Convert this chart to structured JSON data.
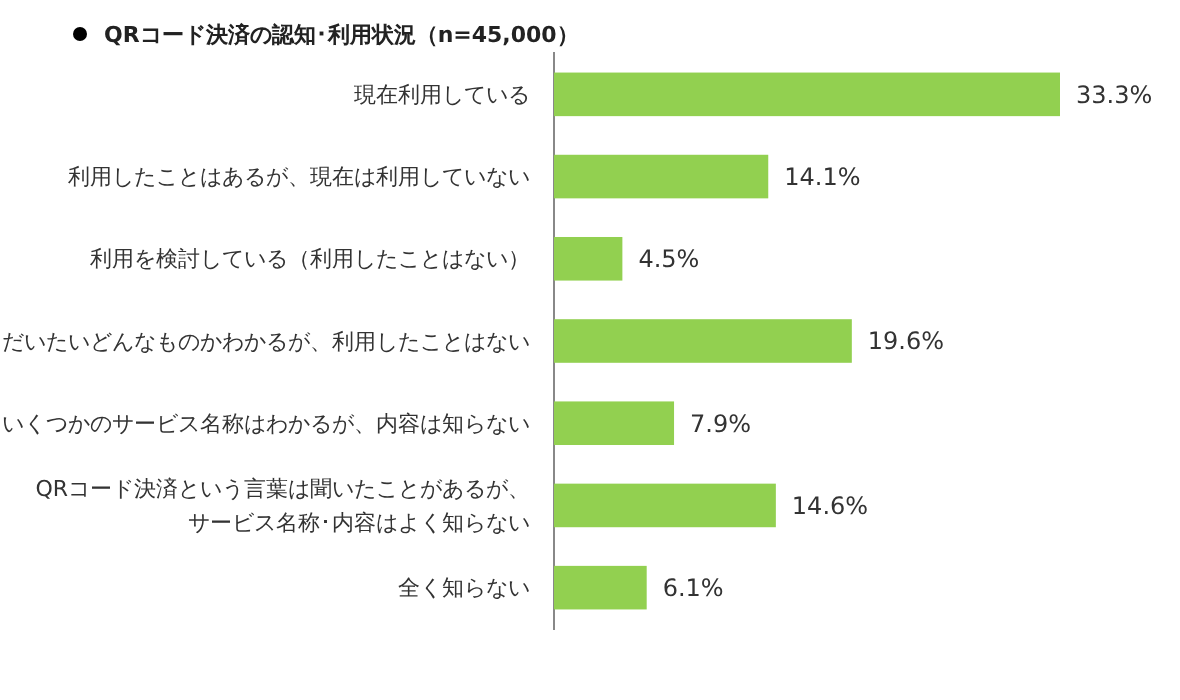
{
  "chart_data": {
    "type": "bar",
    "orientation": "horizontal",
    "title": "QRコード決済の認知･利用状況（n=45,000）",
    "categories": [
      "現在利用している",
      "利用したことはあるが、現在は利用していない",
      "利用を検討している（利用したことはない）",
      "だいたいどんなものかわかるが、利用したことはない",
      "いくつかのサービス名称はわかるが、内容は知らない",
      "QRコード決済という言葉は聞いたことがあるが、サービス名称･内容はよく知らない",
      "全く知らない"
    ],
    "values": [
      33.3,
      14.1,
      4.5,
      19.6,
      7.9,
      14.6,
      6.1
    ],
    "value_labels": [
      "33.3%",
      "14.1%",
      "4.5%",
      "19.6%",
      "7.9%",
      "14.6%",
      "6.1%"
    ],
    "color": "#92d050"
  }
}
